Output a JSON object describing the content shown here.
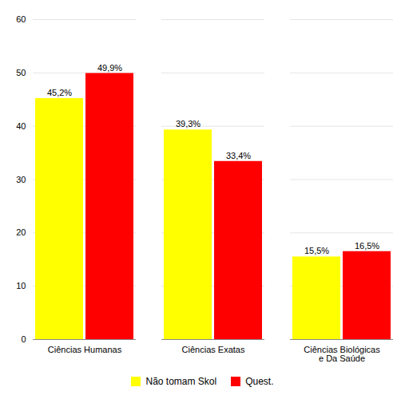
{
  "chart_data": {
    "type": "bar",
    "categories": [
      "Ciências Humanas",
      "Ciências Exatas",
      "Ciências Biológicas\ne Da Saúde"
    ],
    "series": [
      {
        "name": "Não tomam Skol",
        "color": "#FFFF00",
        "values": [
          45.2,
          39.3,
          15.5
        ],
        "value_labels": [
          "45,2%",
          "39,3%",
          "15,5%"
        ]
      },
      {
        "name": "Quest.",
        "color": "#FF0000",
        "values": [
          49.9,
          33.4,
          16.5
        ],
        "value_labels": [
          "49,9%",
          "33,4%",
          "16,5%"
        ]
      }
    ],
    "ylim": [
      0,
      60
    ],
    "yticks": [
      0,
      10,
      20,
      30,
      40,
      50,
      60
    ],
    "grid": true,
    "data_labels": true,
    "legend": "bottom"
  }
}
